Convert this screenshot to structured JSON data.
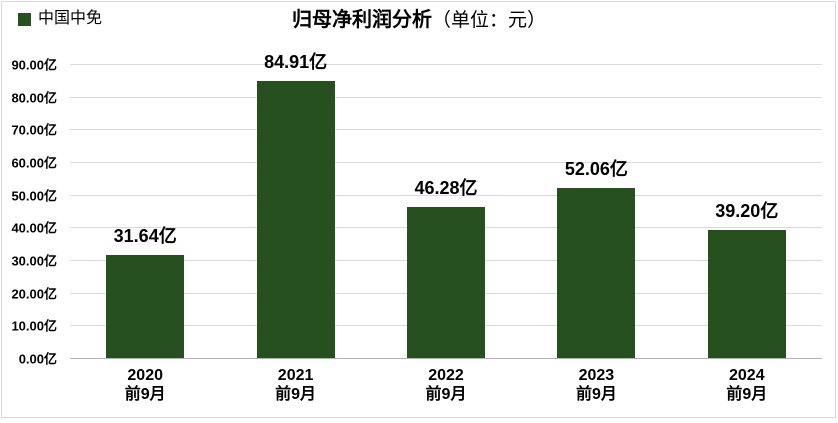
{
  "header": {
    "title": "归母净利润分析",
    "unit": "（单位：元）"
  },
  "legend": {
    "label": "中国中免",
    "swatch_color": "#27501f"
  },
  "colors": {
    "bar": "#27501f",
    "gridline": "#d9d9d9",
    "axis_line": "#b3b3b3",
    "frame_border": "#d9d9d9",
    "text": "#000000"
  },
  "chart_data": {
    "type": "bar",
    "title": "归母净利润分析",
    "title_unit": "（单位：元）",
    "categories": [
      "2020",
      "2021",
      "2022",
      "2023",
      "2024"
    ],
    "category_sub_label": "前9月",
    "series": [
      {
        "name": "中国中免",
        "values": [
          31.64,
          84.91,
          46.28,
          52.06,
          39.2
        ]
      }
    ],
    "value_labels": [
      "31.64亿",
      "84.91亿",
      "46.28亿",
      "52.06亿",
      "39.20亿"
    ],
    "y_ticks": [
      "0.00亿",
      "10.00亿",
      "20.00亿",
      "30.00亿",
      "40.00亿",
      "50.00亿",
      "60.00亿",
      "70.00亿",
      "80.00亿",
      "90.00亿"
    ],
    "ylim": [
      0,
      90
    ],
    "y_tick_step": 10,
    "grid": true,
    "legend_position": "top-left",
    "bar_color": "#27501f"
  }
}
